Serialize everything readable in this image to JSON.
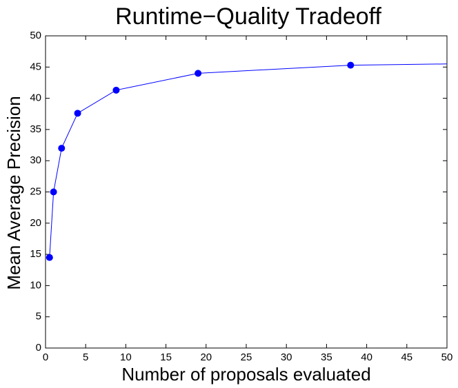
{
  "chart_data": {
    "type": "line",
    "title": "Runtime−Quality Tradeoff",
    "x_label": "Number of proposals evaluated",
    "y_label": "Mean Average Precision",
    "x": [
      0.5,
      1,
      2,
      4,
      8.8,
      19,
      38,
      50
    ],
    "series": [
      {
        "color": "#0000ff",
        "values": [
          14.5,
          25,
          32,
          37.6,
          41.3,
          44,
          45.3,
          45.5
        ],
        "markers": [
          true,
          true,
          true,
          true,
          true,
          true,
          true,
          false
        ]
      }
    ],
    "xlim": [
      0,
      50
    ],
    "ylim": [
      0,
      50
    ],
    "xticks": [
      0,
      5,
      10,
      15,
      20,
      25,
      30,
      35,
      40,
      45,
      50
    ],
    "yticks": [
      0,
      5,
      10,
      15,
      20,
      25,
      30,
      35,
      40,
      45,
      50
    ]
  }
}
